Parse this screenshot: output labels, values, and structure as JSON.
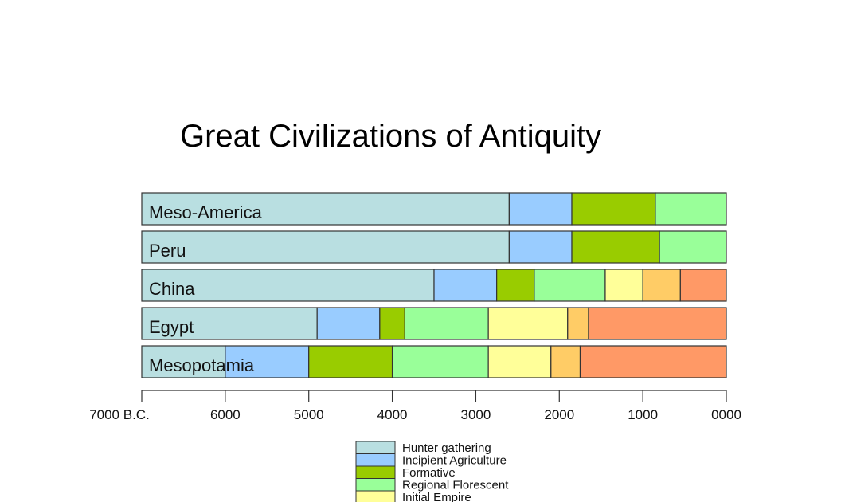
{
  "chart_data": {
    "type": "bar",
    "orientation": "horizontal-stacked-timeline",
    "title": "Great Civilizations of Antiquity",
    "xlim": [
      -7000,
      0
    ],
    "x_ticks": [
      "7000 B.C.",
      "6000",
      "5000",
      "4000",
      "3000",
      "2000",
      "1000",
      "0000"
    ],
    "x_tick_values": [
      -7000,
      -6000,
      -5000,
      -4000,
      -3000,
      -2000,
      -1000,
      0
    ],
    "phases": [
      {
        "name": "Hunter gathering",
        "color": "#b9dfe1"
      },
      {
        "name": "Incipient Agriculture",
        "color": "#99ccff"
      },
      {
        "name": "Formative",
        "color": "#99cc00"
      },
      {
        "name": "Regional Florescent",
        "color": "#99ff99"
      },
      {
        "name": "Initial Empire",
        "color": "#ffff99"
      },
      {
        "name": "",
        "color": "#ffcc66"
      },
      {
        "name": "",
        "color": "#ff9966"
      }
    ],
    "bars": [
      {
        "label": "Meso-America",
        "boundaries": [
          -7000,
          -2600,
          -1850,
          -850,
          0
        ],
        "phases": [
          0,
          1,
          2,
          3
        ]
      },
      {
        "label": "Peru",
        "boundaries": [
          -7000,
          -2600,
          -1850,
          -800,
          0
        ],
        "phases": [
          0,
          1,
          2,
          3
        ]
      },
      {
        "label": "China",
        "boundaries": [
          -7000,
          -3500,
          -2750,
          -2300,
          -1450,
          -1000,
          -550,
          0
        ],
        "phases": [
          0,
          1,
          2,
          3,
          4,
          5,
          6
        ]
      },
      {
        "label": "Egypt",
        "boundaries": [
          -7000,
          -4900,
          -4150,
          -3850,
          -2850,
          -1900,
          -1650,
          0
        ],
        "phases": [
          0,
          1,
          2,
          3,
          4,
          5,
          6
        ]
      },
      {
        "label": "Mesopotamia",
        "boundaries": [
          -7000,
          -6000,
          -5000,
          -4000,
          -2850,
          -2100,
          -1750,
          0
        ],
        "phases": [
          0,
          1,
          2,
          3,
          4,
          5,
          6
        ]
      }
    ],
    "legend_placement": "bottom-center",
    "legend_visible_entries": 5,
    "grid": false
  }
}
